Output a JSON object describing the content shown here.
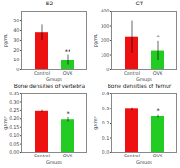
{
  "chart_data": [
    {
      "type": "bar",
      "title": "E2",
      "xlabel": "Groups",
      "ylabel": "pg/mL",
      "categories": [
        "Control",
        "OVX"
      ],
      "values": [
        38,
        10
      ],
      "errors": [
        8,
        5
      ],
      "colors": [
        "#EE1111",
        "#22CC22"
      ],
      "ylim": [
        0,
        60
      ],
      "yticks": [
        0,
        10,
        20,
        30,
        40,
        50
      ],
      "annotations": [
        {
          "x": "OVX",
          "text": "**"
        }
      ],
      "grid": false
    },
    {
      "type": "bar",
      "title": "CT",
      "xlabel": "Groups",
      "ylabel": "pg/mL",
      "categories": [
        "Control",
        "OVX"
      ],
      "values": [
        220,
        130
      ],
      "errors": [
        110,
        65
      ],
      "colors": [
        "#EE1111",
        "#22CC22"
      ],
      "ylim": [
        0,
        400
      ],
      "yticks": [
        0,
        100,
        200,
        300,
        400
      ],
      "annotations": [
        {
          "x": "OVX",
          "text": "*"
        }
      ],
      "grid": false
    },
    {
      "type": "bar",
      "title": "Bone densities of vertebra",
      "xlabel": "Groups",
      "ylabel": "g/cm²",
      "categories": [
        "Control",
        "OVX"
      ],
      "values": [
        0.245,
        0.195
      ],
      "errors": [
        0.006,
        0.012
      ],
      "colors": [
        "#EE1111",
        "#22CC22"
      ],
      "ylim": [
        0.0,
        0.35
      ],
      "yticks": [
        {
          "value": 0,
          "label": "0.00"
        },
        0.05,
        {
          "value": 0.1,
          "label": "0.10"
        },
        0.15,
        {
          "value": 0.2,
          "label": "0.20"
        },
        0.25,
        {
          "value": 0.3,
          "label": "0.30"
        },
        0.35
      ],
      "annotations": [
        {
          "x": "OVX",
          "text": "*"
        }
      ],
      "grid": false
    },
    {
      "type": "bar",
      "title": "Bone densities of femur",
      "xlabel": "Groups",
      "ylabel": "g/cm²",
      "categories": [
        "Control",
        "OVX"
      ],
      "values": [
        0.295,
        0.245
      ],
      "errors": [
        0.01,
        0.012
      ],
      "colors": [
        "#EE1111",
        "#22CC22"
      ],
      "ylim": [
        0.0,
        0.4
      ],
      "yticks": [
        {
          "value": 0,
          "label": "0.0"
        },
        0.1,
        0.2,
        0.3,
        0.4
      ],
      "annotations": [
        {
          "x": "OVX",
          "text": "*"
        }
      ],
      "grid": false
    }
  ]
}
